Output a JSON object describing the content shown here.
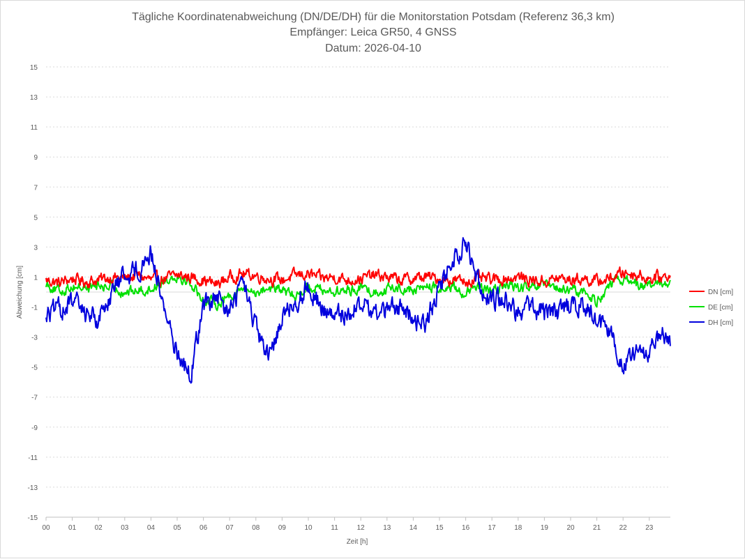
{
  "chart_data": {
    "type": "line",
    "title": [
      "Tägliche Koordinatenabweichung (DN/DE/DH) für die Monitorstation Potsdam (Referenz 36,3 km)",
      "Empfänger: Leica GR50, 4 GNSS",
      "Datum: 2026-04-10"
    ],
    "xlabel": "Zeit [h]",
    "ylabel": "Abweichung [cm]",
    "xlim": [
      0,
      24
    ],
    "ylim": [
      -15,
      15
    ],
    "x_tick_labels": [
      "00",
      "01",
      "02",
      "03",
      "04",
      "05",
      "06",
      "07",
      "08",
      "09",
      "10",
      "11",
      "12",
      "13",
      "14",
      "15",
      "16",
      "17",
      "18",
      "19",
      "20",
      "21",
      "22",
      "23"
    ],
    "y_tick_labels": [
      "15",
      "13",
      "11",
      "9",
      "7",
      "5",
      "3",
      "1",
      "-1",
      "-3",
      "-5",
      "-7",
      "-9",
      "-11",
      "-13",
      "-15"
    ],
    "grid": true,
    "legend_position": "right",
    "x": [
      0,
      0.5,
      1,
      1.5,
      2,
      2.5,
      3,
      3.5,
      4,
      4.5,
      5,
      5.5,
      6,
      6.5,
      7,
      7.5,
      8,
      8.5,
      9,
      9.5,
      10,
      10.5,
      11,
      11.5,
      12,
      12.5,
      13,
      13.5,
      14,
      14.5,
      15,
      15.5,
      16,
      16.5,
      17,
      17.5,
      18,
      18.5,
      19,
      19.5,
      20,
      20.5,
      21,
      21.5,
      22,
      22.5,
      23,
      23.5,
      23.8
    ],
    "series": [
      {
        "name": "DN [cm]",
        "color": "#ff0000",
        "values": [
          0.8,
          0.6,
          0.9,
          0.7,
          0.8,
          1.0,
          0.9,
          1.1,
          0.8,
          0.9,
          1.1,
          1.0,
          0.8,
          0.5,
          1.0,
          1.2,
          1.1,
          0.9,
          0.8,
          1.1,
          1.2,
          0.9,
          1.0,
          0.8,
          0.9,
          1.1,
          1.0,
          0.8,
          0.9,
          1.0,
          0.9,
          0.8,
          0.7,
          0.9,
          0.8,
          0.9,
          1.0,
          0.8,
          0.7,
          0.9,
          0.8,
          0.9,
          0.7,
          0.9,
          1.3,
          1.2,
          0.9,
          1.0,
          1.1
        ]
      },
      {
        "name": "DE [cm]",
        "color": "#00e000",
        "values": [
          0.6,
          0.0,
          0.4,
          0.3,
          0.4,
          0.3,
          0.0,
          0.1,
          0.2,
          0.8,
          1.1,
          0.6,
          -0.5,
          -0.8,
          -0.2,
          0.2,
          0.0,
          0.3,
          0.1,
          -0.3,
          0.4,
          0.2,
          0.0,
          0.1,
          0.3,
          0.0,
          0.2,
          0.3,
          0.1,
          0.4,
          0.2,
          0.3,
          -0.1,
          0.3,
          0.0,
          0.5,
          0.3,
          0.2,
          0.4,
          0.2,
          0.1,
          0.0,
          -0.6,
          0.4,
          0.9,
          0.6,
          0.4,
          0.5,
          0.8
        ]
      },
      {
        "name": "DH [cm]",
        "color": "#0000dd",
        "values": [
          -1.5,
          -1.2,
          -0.7,
          -1.3,
          -1.8,
          0.0,
          1.2,
          1.5,
          2.7,
          -1.0,
          -4.0,
          -5.6,
          -0.8,
          -0.5,
          -1.4,
          0.8,
          -2.5,
          -4.6,
          -1.5,
          -0.7,
          0.4,
          -1.0,
          -1.8,
          -1.3,
          -0.8,
          -1.4,
          -1.2,
          -1.0,
          -1.8,
          -2.0,
          0.2,
          2.2,
          3.2,
          0.6,
          -0.5,
          -0.4,
          -1.3,
          -1.1,
          -1.3,
          -1.4,
          -0.8,
          -0.9,
          -1.9,
          -2.8,
          -4.7,
          -4.2,
          -4.1,
          -3.0,
          -3.6
        ]
      }
    ]
  }
}
